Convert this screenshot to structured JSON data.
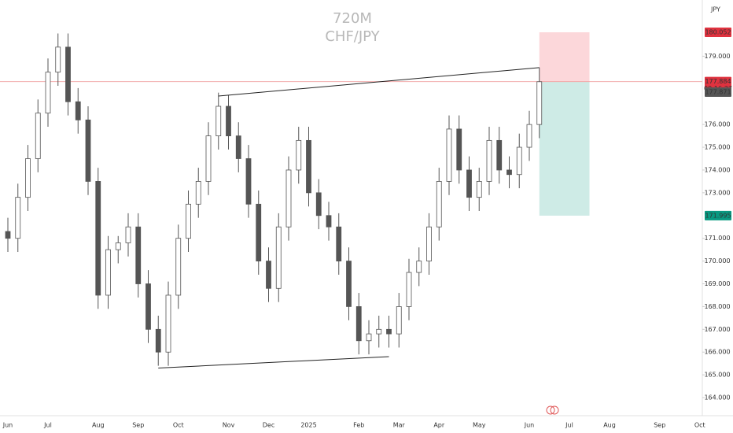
{
  "chart_data": {
    "type": "candlestick",
    "title": "720M",
    "subtitle": "CHF/JPY",
    "currency": "JPY",
    "categories": [
      "Jun",
      null,
      null,
      null,
      "Jul",
      null,
      null,
      null,
      null,
      "Aug",
      null,
      null,
      null,
      "Sep",
      null,
      null,
      null,
      "Oct",
      null,
      null,
      null,
      null,
      "Nov",
      null,
      null,
      null,
      "Dec",
      null,
      null,
      null,
      "2025",
      null,
      null,
      null,
      null,
      "Feb",
      null,
      null,
      null,
      "Mar",
      null,
      null,
      null,
      "Apr",
      null,
      null,
      null,
      "May",
      null,
      null,
      null,
      null,
      "Jun",
      null,
      null,
      null,
      "Jul",
      null,
      null,
      null,
      "Aug",
      null,
      null,
      null,
      null,
      "Sep",
      null,
      null,
      null,
      "Oct"
    ],
    "open": [
      171.3,
      171.0,
      172.8,
      174.5,
      176.5,
      178.3,
      179.4,
      177.0,
      176.2,
      173.5,
      168.5,
      170.5,
      170.8,
      171.5,
      169.0,
      167.0,
      166.0,
      168.5,
      171.0,
      172.5,
      173.5,
      175.5,
      176.8,
      175.5,
      174.5,
      172.5,
      170.0,
      168.8,
      171.5,
      174.0,
      175.3,
      173.0,
      172.0,
      171.5,
      170.0,
      168.0,
      166.5,
      166.8,
      167.0,
      166.8,
      168.0,
      169.5,
      170.0,
      171.5,
      173.5,
      175.8,
      174.0,
      172.8,
      173.5,
      175.3,
      174.0,
      173.8,
      175.0,
      176.0,
      null,
      null,
      null,
      null,
      null,
      null,
      null,
      null,
      null,
      null,
      null,
      null,
      null,
      null,
      null,
      null
    ],
    "high": [
      171.9,
      173.4,
      175.1,
      177.1,
      178.9,
      180.0,
      180.0,
      177.6,
      176.8,
      174.1,
      171.1,
      171.1,
      172.1,
      172.1,
      169.6,
      167.6,
      169.1,
      171.6,
      173.1,
      174.1,
      176.1,
      177.4,
      177.3,
      176.1,
      175.1,
      173.1,
      170.6,
      172.1,
      174.6,
      175.9,
      175.9,
      173.6,
      172.6,
      172.1,
      170.6,
      168.6,
      167.4,
      167.6,
      167.6,
      168.6,
      170.1,
      170.6,
      172.1,
      174.1,
      176.4,
      176.4,
      174.6,
      174.1,
      175.9,
      175.9,
      174.6,
      175.6,
      176.6,
      178.5,
      null,
      null,
      null,
      null,
      null,
      null,
      null,
      null,
      null,
      null,
      null,
      null,
      null,
      null,
      null,
      null
    ],
    "low": [
      170.4,
      170.4,
      172.2,
      173.9,
      175.9,
      177.7,
      176.4,
      175.6,
      172.9,
      167.9,
      167.9,
      169.9,
      170.2,
      168.4,
      166.4,
      165.4,
      165.4,
      167.9,
      170.4,
      171.9,
      172.9,
      174.9,
      174.9,
      173.9,
      171.9,
      169.4,
      168.2,
      168.2,
      170.9,
      173.4,
      172.4,
      171.4,
      170.9,
      169.4,
      167.4,
      165.9,
      165.9,
      166.2,
      166.2,
      166.2,
      167.4,
      168.9,
      169.4,
      170.9,
      172.9,
      173.4,
      172.2,
      172.2,
      172.9,
      173.4,
      173.2,
      173.2,
      174.4,
      175.4,
      null,
      null,
      null,
      null,
      null,
      null,
      null,
      null,
      null,
      null,
      null,
      null,
      null,
      null,
      null,
      null
    ],
    "close": [
      171.0,
      172.8,
      174.5,
      176.5,
      178.3,
      179.4,
      177.0,
      176.2,
      173.5,
      168.5,
      170.5,
      170.8,
      171.5,
      169.0,
      167.0,
      166.0,
      168.5,
      171.0,
      172.5,
      173.5,
      175.5,
      176.8,
      175.5,
      174.5,
      172.5,
      170.0,
      168.8,
      171.5,
      174.0,
      175.3,
      173.0,
      172.0,
      171.5,
      170.0,
      168.0,
      166.5,
      166.8,
      167.0,
      166.8,
      168.0,
      169.5,
      170.0,
      171.5,
      173.5,
      175.8,
      174.0,
      172.8,
      173.5,
      175.3,
      174.0,
      173.8,
      175.0,
      176.0,
      177.88,
      null,
      null,
      null,
      null,
      null,
      null,
      null,
      null,
      null,
      null,
      null,
      null,
      null,
      null,
      null,
      null
    ],
    "color": "#555555",
    "ylim": [
      163.31,
      181.47
    ],
    "yticks": [
      {
        "value": 164,
        "label": "164.000"
      },
      {
        "value": 165,
        "label": "165.000"
      },
      {
        "value": 166,
        "label": "166.000"
      },
      {
        "value": 167,
        "label": "167.000"
      },
      {
        "value": 168,
        "label": "168.000"
      },
      {
        "value": 169,
        "label": "169.000"
      },
      {
        "value": 170,
        "label": "170.000"
      },
      {
        "value": 171,
        "label": "171.000"
      },
      {
        "value": 173,
        "label": "173.000"
      },
      {
        "value": 174,
        "label": "174.000"
      },
      {
        "value": 175,
        "label": "175.000"
      },
      {
        "value": 176,
        "label": "176.000"
      },
      {
        "value": 179,
        "label": "179.000"
      }
    ],
    "trendlines": [
      {
        "x": [
          21,
          53
        ],
        "y": [
          177.25,
          178.5
        ]
      },
      {
        "x": [
          15,
          38
        ],
        "y": [
          165.3,
          165.8
        ]
      }
    ],
    "position": {
      "x": [
        53,
        58
      ],
      "stop": 180.052,
      "entry": 177.884,
      "target": 171.995,
      "bid": 177.871,
      "countdown": "09:16:37"
    }
  }
}
